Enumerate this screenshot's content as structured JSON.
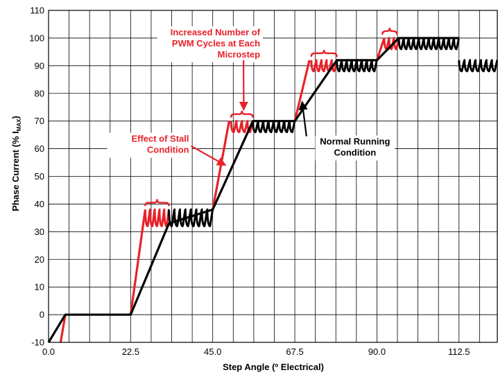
{
  "chart_data": {
    "type": "line",
    "xlabel": "Step Angle (º Electrical)",
    "ylabel_main": "Phase Current (% I",
    "ylabel_sub": "MAX",
    "ylabel_close": ")",
    "xlim": [
      0,
      123
    ],
    "ylim": [
      -10,
      110
    ],
    "x_ticks": [
      0,
      22.5,
      45,
      67.5,
      90,
      112.5
    ],
    "x_tick_labels": [
      "0.0",
      "22.5",
      "45.0",
      "67.5",
      "90.0",
      "112.5"
    ],
    "x_minor_step": 5.625,
    "y_ticks": [
      -10,
      0,
      10,
      20,
      30,
      40,
      50,
      60,
      70,
      80,
      90,
      100,
      110
    ],
    "y_tick_labels": [
      "-10",
      "0",
      "10",
      "20",
      "30",
      "40",
      "50",
      "60",
      "70",
      "80",
      "90",
      "100",
      "110"
    ],
    "grid": true,
    "series": [
      {
        "color": "#e8222a",
        "ramps": [
          [
            3.3,
            -10,
            4.6,
            0
          ],
          [
            22.5,
            0,
            26.5,
            38
          ],
          [
            45,
            38,
            49.5,
            70
          ],
          [
            67.5,
            70,
            71.5,
            92
          ],
          [
            90,
            92,
            92,
            100
          ]
        ],
        "ripples": [
          {
            "x_start": 26.5,
            "x_end": 33,
            "low": 32,
            "high": 38,
            "cycles": 5
          },
          {
            "x_start": 50,
            "x_end": 56,
            "low": 66,
            "high": 70,
            "cycles": 4
          },
          {
            "x_start": 72,
            "x_end": 79,
            "low": 88,
            "high": 92,
            "cycles": 5
          },
          {
            "x_start": 92,
            "x_end": 96,
            "low": 96,
            "high": 100,
            "cycles": 3
          }
        ]
      },
      {
        "color": "#000000",
        "x": [
          0,
          4.6,
          22.5,
          33,
          45,
          56,
          67.5,
          79,
          90,
          96,
          112.5
        ],
        "y": [
          -10,
          0,
          0,
          33,
          38,
          70,
          70,
          92,
          92,
          100,
          100
        ],
        "ripples": [
          {
            "x_start": 33,
            "x_end": 45,
            "low": 32,
            "high": 38,
            "cycles": 8
          },
          {
            "x_start": 56,
            "x_end": 67.5,
            "low": 66,
            "high": 70,
            "cycles": 8
          },
          {
            "x_start": 79,
            "x_end": 90,
            "low": 88,
            "high": 92,
            "cycles": 8
          },
          {
            "x_start": 96,
            "x_end": 112.5,
            "low": 96,
            "high": 100,
            "cycles": 12
          },
          {
            "x_start": 112.5,
            "x_end": 123,
            "low": 88,
            "high": 92,
            "cycles": 7
          }
        ]
      }
    ],
    "annotations": [
      {
        "lines": [
          "Increased Number of",
          "PWM Cycles at Each",
          "Microstep"
        ],
        "color": "#e8222a",
        "x": 58,
        "y": 101,
        "anchor": "end",
        "arrow_to": [
          53.5,
          74
        ]
      },
      {
        "lines": [
          "Effect of Stall",
          "Condition"
        ],
        "color": "#e8222a",
        "x": 38.5,
        "y": 62.5,
        "anchor": "end",
        "arrow_to": [
          48.5,
          54
        ]
      },
      {
        "lines": [
          "Normal Running",
          "Condition"
        ],
        "color": "#000000",
        "x": 84,
        "y": 61.5,
        "anchor": "middle",
        "arrow_to": [
          69.5,
          77
        ]
      }
    ],
    "braces": [
      {
        "x_start": 26.5,
        "x_end": 33,
        "y": 40.5,
        "color": "#e8222a"
      },
      {
        "x_start": 50,
        "x_end": 56,
        "y": 72.5,
        "color": "#e8222a"
      },
      {
        "x_start": 72,
        "x_end": 79,
        "y": 94.5,
        "color": "#e8222a"
      },
      {
        "x_start": 91.5,
        "x_end": 95.5,
        "y": 102.5,
        "color": "#e8222a"
      }
    ]
  }
}
